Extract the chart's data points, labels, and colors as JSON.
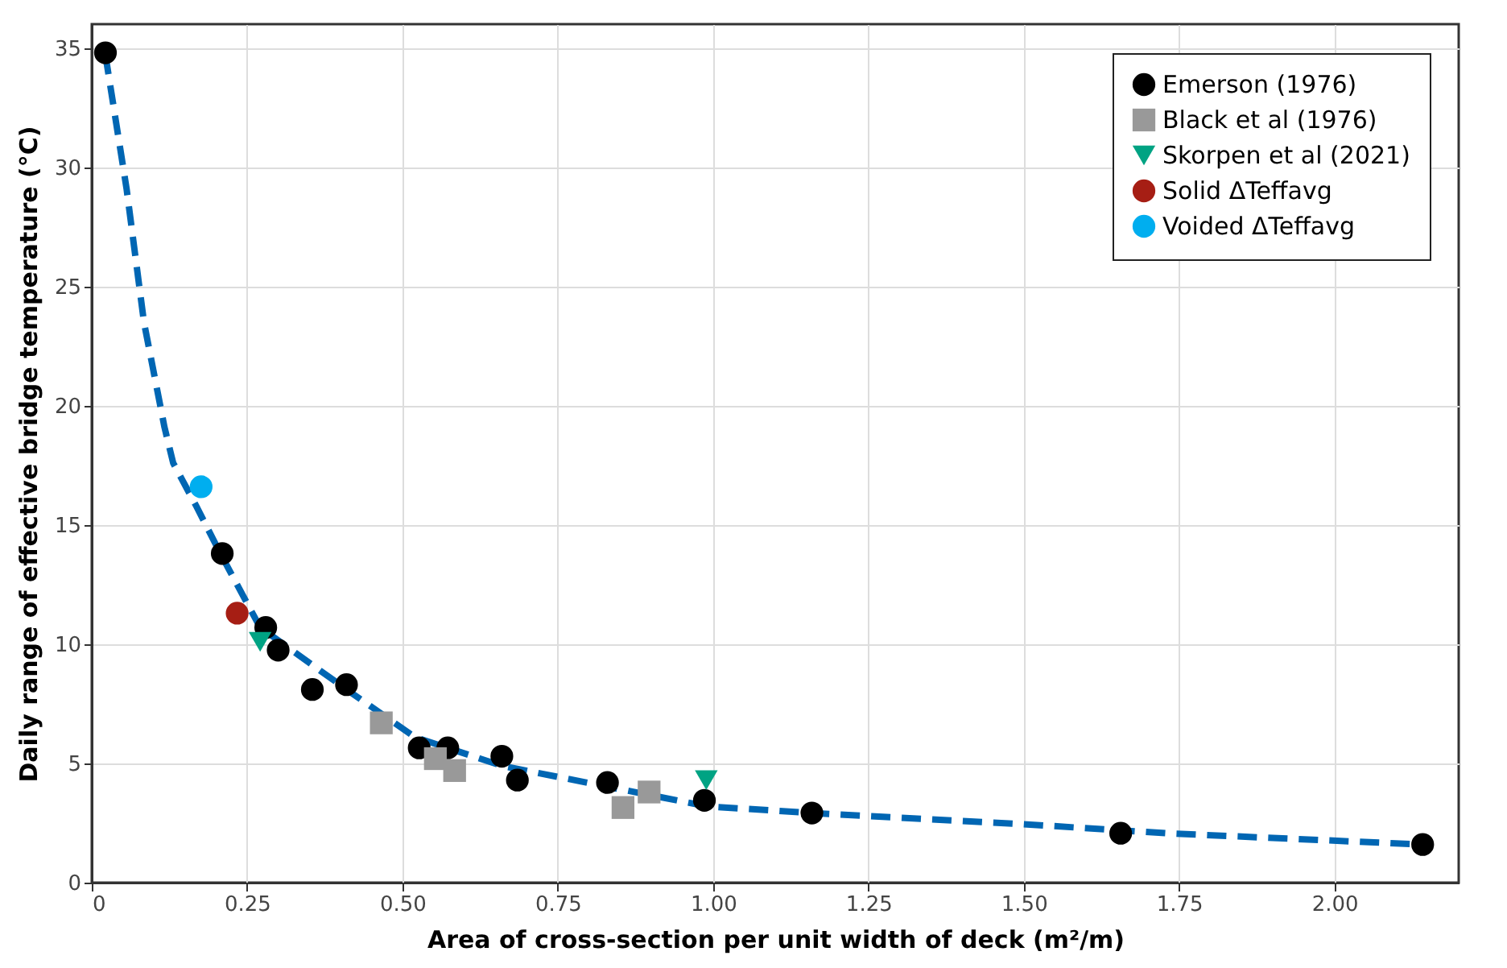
{
  "chart_data": {
    "type": "scatter",
    "xlabel": "Area of cross-section per unit width of deck (m²/m)",
    "ylabel": "Daily range of effective bridge temperature (°C)",
    "xlim": [
      0,
      2.2
    ],
    "xticks": [
      {
        "value": 0,
        "label": "0"
      },
      0.25,
      {
        "value": 0.5,
        "label": "0.50"
      },
      0.75,
      {
        "value": 1,
        "label": "1.00"
      },
      1.25,
      {
        "value": 1.5,
        "label": "1.50"
      },
      1.75,
      {
        "value": 2,
        "label": "2.00"
      }
    ],
    "ylim": [
      0,
      36
    ],
    "yticks": [
      0,
      5,
      10,
      15,
      20,
      25,
      30,
      35
    ],
    "grid": true,
    "legend": "top right",
    "series": [
      {
        "type": "line",
        "color": "#0066b3",
        "line_style": "dashed",
        "marker": "none",
        "x": [
          0.022,
          0.056,
          0.084,
          0.117,
          0.131,
          0.168,
          0.207,
          0.271,
          0.41,
          0.52,
          0.66,
          0.99,
          1.16,
          1.5,
          1.73,
          2.14
        ],
        "values": [
          34.7,
          29.1,
          23.5,
          19.1,
          17.6,
          15.8,
          13.8,
          10.7,
          8.1,
          6.1,
          4.9,
          3.2,
          2.92,
          2.45,
          2.07,
          1.6
        ]
      },
      {
        "name": "Emerson (1976)",
        "color": "#000000",
        "marker": "circle",
        "x": [
          0.022,
          0.21,
          0.28,
          0.3,
          0.355,
          0.41,
          0.527,
          0.573,
          0.66,
          0.685,
          0.83,
          0.986,
          1.159,
          1.656,
          2.142
        ],
        "values": [
          34.8,
          13.8,
          10.7,
          9.75,
          8.1,
          8.3,
          5.65,
          5.65,
          5.3,
          4.3,
          4.2,
          3.45,
          2.92,
          2.07,
          1.6
        ]
      },
      {
        "name": "Black et al (1976)",
        "color": "#999999",
        "marker": "square",
        "x": [
          0.466,
          0.553,
          0.584,
          0.855,
          0.897
        ],
        "values": [
          6.7,
          5.2,
          4.7,
          3.15,
          3.8
        ]
      },
      {
        "name": "Skorpen et al (2021)",
        "color": "#00a383",
        "marker": "triangle",
        "x": [
          0.271,
          0.989
        ],
        "values": [
          10.1,
          4.3
        ]
      },
      {
        "name": "Solid ΔTeffavg",
        "color": "#a61e14",
        "marker": "circle",
        "x": [
          0.234
        ],
        "values": [
          11.3
        ]
      },
      {
        "name": "Voided ΔTeffavg",
        "color": "#00aeef",
        "marker": "circle",
        "x": [
          0.176
        ],
        "values": [
          16.6
        ]
      }
    ]
  }
}
